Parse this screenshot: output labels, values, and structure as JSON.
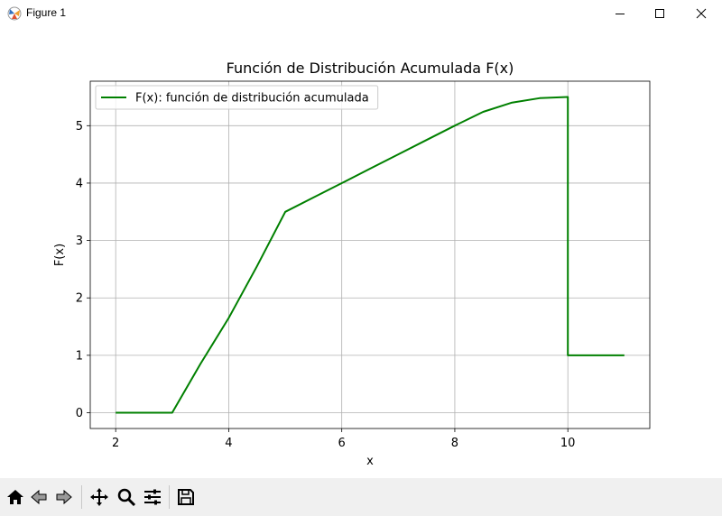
{
  "window": {
    "title": "Figure 1",
    "icons": [
      "matplotlib-app-icon",
      "minimize-icon",
      "maximize-icon",
      "close-icon"
    ]
  },
  "toolbar": {
    "buttons": [
      "home-icon",
      "back-icon",
      "forward-icon",
      "pan-icon",
      "zoom-icon",
      "configure-subplots-icon",
      "save-icon"
    ]
  },
  "chart_data": {
    "type": "line",
    "title": "Función de Distribución Acumulada F(x)",
    "xlabel": "x",
    "ylabel": "F(x)",
    "xlim": [
      1.55,
      11.45
    ],
    "ylim": [
      -0.275,
      5.775
    ],
    "xticks": [
      2,
      4,
      6,
      8,
      10
    ],
    "yticks": [
      0,
      1,
      2,
      3,
      4,
      5
    ],
    "grid": true,
    "legend_position": "top-left",
    "series": [
      {
        "name": "F(x): función de distribución acumulada",
        "color": "#008000",
        "x": [
          2,
          3,
          3.5,
          4,
          4.5,
          5,
          5.5,
          6,
          6.5,
          7,
          7.5,
          8,
          8.5,
          9,
          9.5,
          10,
          10,
          11
        ],
        "y": [
          0,
          0,
          0.85,
          1.65,
          2.55,
          3.5,
          3.75,
          4.0,
          4.25,
          4.5,
          4.75,
          5.0,
          5.24,
          5.4,
          5.48,
          5.5,
          1,
          1
        ]
      }
    ]
  }
}
